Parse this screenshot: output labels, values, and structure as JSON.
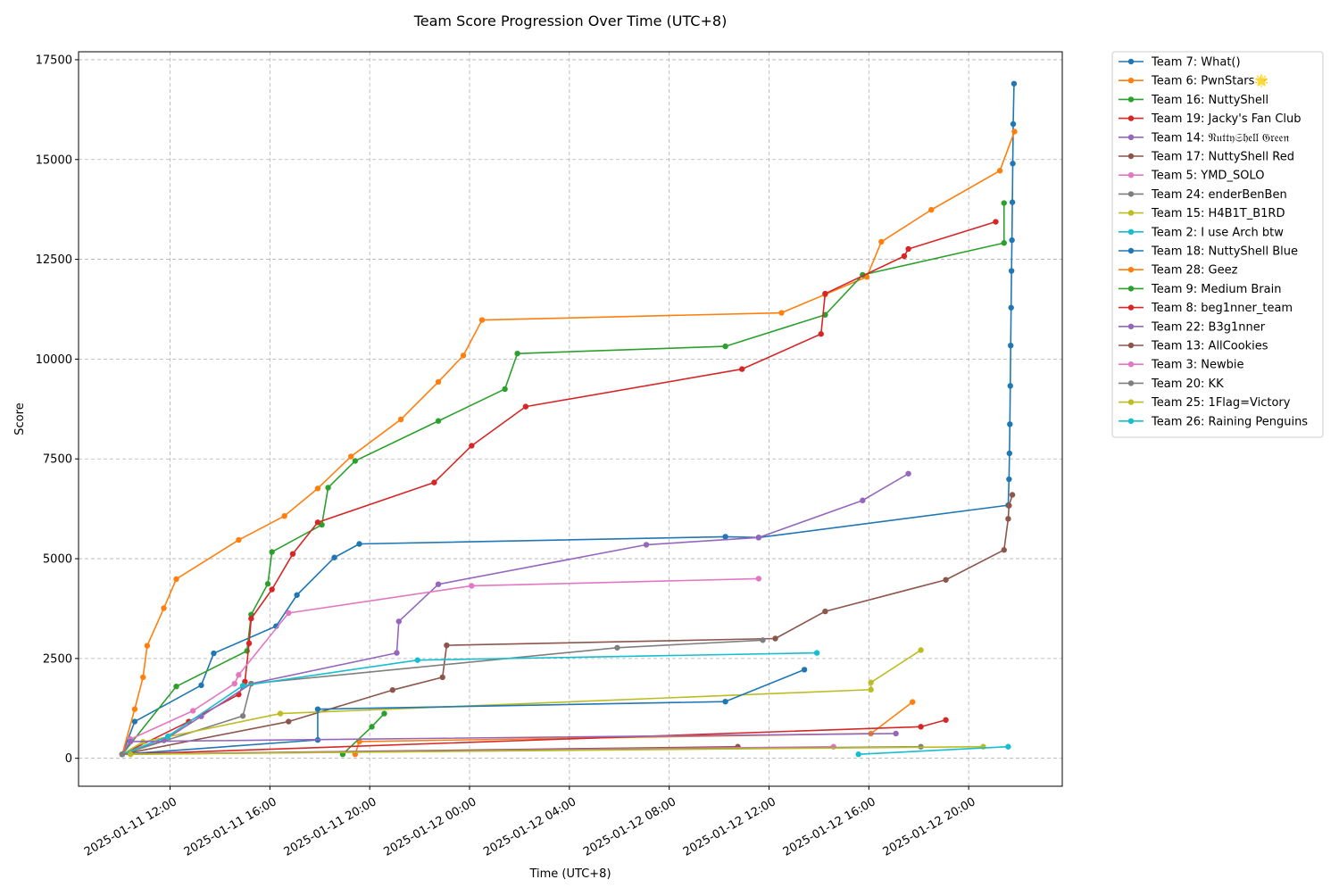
{
  "chart_data": {
    "type": "line",
    "title": "Team Score Progression Over Time (UTC+8)",
    "xlabel": "Time (UTC+8)",
    "ylabel": "Score",
    "xlim": [
      "2025-01-11 08:20",
      "2025-01-12 23:45"
    ],
    "ylim": [
      -700,
      17700
    ],
    "y_ticks": [
      0,
      2500,
      5000,
      7500,
      10000,
      12500,
      15000,
      17500
    ],
    "x_ticks": [
      "2025-01-11 12:00",
      "2025-01-11 16:00",
      "2025-01-11 20:00",
      "2025-01-12 00:00",
      "2025-01-12 04:00",
      "2025-01-12 08:00",
      "2025-01-12 12:00",
      "2025-01-12 16:00",
      "2025-01-12 20:00"
    ],
    "x_tick_labels": [
      "2025-01-11 12:00",
      "2025-01-11 16:00",
      "2025-01-11 20:00",
      "2025-01-12 00:00",
      "2025-01-12 04:00",
      "2025-01-12 08:00",
      "2025-01-12 12:00",
      "2025-01-12 16:00",
      "2025-01-12 20:00"
    ],
    "grid": true,
    "legend_position": "outside-right",
    "series": [
      {
        "name": "Team 7: What()",
        "color": "#1f77b4",
        "points": [
          [
            "2025-01-11 10:05",
            100
          ],
          [
            "2025-01-11 10:35",
            920
          ],
          [
            "2025-01-11 13:15",
            1830
          ],
          [
            "2025-01-11 13:45",
            2630
          ],
          [
            "2025-01-11 16:15",
            3310
          ],
          [
            "2025-01-11 17:05",
            4090
          ],
          [
            "2025-01-11 18:35",
            5030
          ],
          [
            "2025-01-11 19:35",
            5370
          ],
          [
            "2025-01-12 10:15",
            5550
          ],
          [
            "2025-01-12 11:35",
            5530
          ],
          [
            "2025-01-12 21:35",
            6340
          ],
          [
            "2025-01-12 21:37",
            6990
          ],
          [
            "2025-01-12 21:38",
            7640
          ],
          [
            "2025-01-12 21:39",
            8370
          ],
          [
            "2025-01-12 21:40",
            9330
          ],
          [
            "2025-01-12 21:41",
            10340
          ],
          [
            "2025-01-12 21:42",
            11290
          ],
          [
            "2025-01-12 21:43",
            12210
          ],
          [
            "2025-01-12 21:44",
            12980
          ],
          [
            "2025-01-12 21:45",
            13930
          ],
          [
            "2025-01-12 21:46",
            14900
          ],
          [
            "2025-01-12 21:47",
            15890
          ],
          [
            "2025-01-12 21:49",
            16900
          ]
        ]
      },
      {
        "name": "Team 6: PwnStars🌟",
        "color": "#ff7f0e",
        "points": [
          [
            "2025-01-11 10:05",
            100
          ],
          [
            "2025-01-11 10:35",
            1230
          ],
          [
            "2025-01-11 10:55",
            2030
          ],
          [
            "2025-01-11 11:05",
            2820
          ],
          [
            "2025-01-11 11:45",
            3760
          ],
          [
            "2025-01-11 12:15",
            4490
          ],
          [
            "2025-01-11 14:45",
            5470
          ],
          [
            "2025-01-11 16:35",
            6070
          ],
          [
            "2025-01-11 17:55",
            6760
          ],
          [
            "2025-01-11 19:15",
            7560
          ],
          [
            "2025-01-11 21:15",
            8490
          ],
          [
            "2025-01-11 22:45",
            9430
          ],
          [
            "2025-01-11 23:45",
            10090
          ],
          [
            "2025-01-12 00:30",
            10980
          ],
          [
            "2025-01-12 12:30",
            11160
          ],
          [
            "2025-01-12 14:15",
            11620
          ],
          [
            "2025-01-12 15:55",
            12060
          ],
          [
            "2025-01-12 16:30",
            12940
          ],
          [
            "2025-01-12 18:30",
            13740
          ],
          [
            "2025-01-12 21:15",
            14720
          ],
          [
            "2025-01-12 21:50",
            15700
          ]
        ]
      },
      {
        "name": "Team 16: NuttyShell",
        "color": "#2ca02c",
        "points": [
          [
            "2025-01-11 10:05",
            100
          ],
          [
            "2025-01-11 12:15",
            1800
          ],
          [
            "2025-01-11 15:05",
            2690
          ],
          [
            "2025-01-11 15:15",
            3600
          ],
          [
            "2025-01-11 15:55",
            4370
          ],
          [
            "2025-01-11 16:05",
            5170
          ],
          [
            "2025-01-11 18:05",
            5850
          ],
          [
            "2025-01-11 18:20",
            6780
          ],
          [
            "2025-01-11 19:25",
            7450
          ],
          [
            "2025-01-11 22:45",
            8450
          ],
          [
            "2025-01-12 01:25",
            9250
          ],
          [
            "2025-01-12 01:55",
            10140
          ],
          [
            "2025-01-12 10:15",
            10320
          ],
          [
            "2025-01-12 14:15",
            11110
          ],
          [
            "2025-01-12 15:45",
            12110
          ],
          [
            "2025-01-12 21:25",
            12910
          ],
          [
            "2025-01-12 21:25",
            13910
          ]
        ]
      },
      {
        "name": "Team 19: Jacky's Fan Club",
        "color": "#d62728",
        "points": [
          [
            "2025-01-11 10:05",
            100
          ],
          [
            "2025-01-11 12:45",
            920
          ],
          [
            "2025-01-11 14:45",
            1600
          ],
          [
            "2025-01-11 15:00",
            1920
          ],
          [
            "2025-01-11 15:10",
            2880
          ],
          [
            "2025-01-11 15:15",
            3500
          ],
          [
            "2025-01-11 16:05",
            4230
          ],
          [
            "2025-01-11 16:55",
            5120
          ],
          [
            "2025-01-11 17:55",
            5910
          ],
          [
            "2025-01-11 22:35",
            6910
          ],
          [
            "2025-01-12 00:05",
            7830
          ],
          [
            "2025-01-12 02:15",
            8810
          ],
          [
            "2025-01-12 10:55",
            9750
          ],
          [
            "2025-01-12 14:05",
            10630
          ],
          [
            "2025-01-12 14:15",
            11640
          ],
          [
            "2025-01-12 17:25",
            12580
          ],
          [
            "2025-01-12 17:35",
            12760
          ],
          [
            "2025-01-12 21:05",
            13440
          ]
        ]
      },
      {
        "name": "Team 14: 𝔑𝔲𝔱𝔱𝔶𝔖𝔥𝔢𝔩𝔩 𝔊𝔯𝔢𝔢𝔫",
        "color": "#9467bd",
        "points": [
          [
            "2025-01-11 10:05",
            100
          ],
          [
            "2025-01-11 11:45",
            450
          ],
          [
            "2025-01-11 13:15",
            1050
          ],
          [
            "2025-01-11 15:15",
            1870
          ],
          [
            "2025-01-11 21:05",
            2640
          ],
          [
            "2025-01-11 21:10",
            3430
          ],
          [
            "2025-01-11 22:45",
            4360
          ],
          [
            "2025-01-12 07:05",
            5350
          ],
          [
            "2025-01-12 11:35",
            5530
          ],
          [
            "2025-01-12 15:45",
            6460
          ],
          [
            "2025-01-12 17:35",
            7130
          ]
        ]
      },
      {
        "name": "Team 17: NuttyShell Red",
        "color": "#8c564b",
        "points": [
          [
            "2025-01-11 10:05",
            100
          ],
          [
            "2025-01-11 16:45",
            920
          ],
          [
            "2025-01-11 20:55",
            1710
          ],
          [
            "2025-01-11 22:55",
            2030
          ],
          [
            "2025-01-11 23:05",
            2830
          ],
          [
            "2025-01-12 12:15",
            3000
          ],
          [
            "2025-01-12 14:15",
            3680
          ],
          [
            "2025-01-12 19:05",
            4470
          ],
          [
            "2025-01-12 21:25",
            5220
          ],
          [
            "2025-01-12 21:35",
            6000
          ],
          [
            "2025-01-12 21:37",
            6330
          ],
          [
            "2025-01-12 21:45",
            6600
          ]
        ]
      },
      {
        "name": "Team 5: YMD_SOLO",
        "color": "#e377c2",
        "points": [
          [
            "2025-01-11 10:05",
            100
          ],
          [
            "2025-01-11 10:25",
            480
          ],
          [
            "2025-01-11 12:55",
            1190
          ],
          [
            "2025-01-11 14:35",
            1870
          ],
          [
            "2025-01-11 14:45",
            2090
          ],
          [
            "2025-01-11 16:45",
            3640
          ],
          [
            "2025-01-12 00:05",
            4320
          ],
          [
            "2025-01-12 11:35",
            4500
          ]
        ]
      },
      {
        "name": "Team 24: enderBenBen",
        "color": "#7f7f7f",
        "points": [
          [
            "2025-01-11 10:05",
            100
          ],
          [
            "2025-01-11 14:55",
            1060
          ],
          [
            "2025-01-11 15:15",
            1870
          ],
          [
            "2025-01-12 05:55",
            2770
          ],
          [
            "2025-01-12 11:45",
            2960
          ]
        ]
      },
      {
        "name": "Team 15: H4B1T_B1RD",
        "color": "#bcbd22",
        "points": [
          [
            "2025-01-11 10:05",
            100
          ],
          [
            "2025-01-11 10:55",
            410
          ],
          [
            "2025-01-11 16:25",
            1120
          ],
          [
            "2025-01-12 16:05",
            1720
          ],
          [
            "2025-01-12 16:05",
            1900
          ],
          [
            "2025-01-12 18:05",
            2710
          ]
        ]
      },
      {
        "name": "Team 2: I use Arch btw",
        "color": "#17becf",
        "points": [
          [
            "2025-01-11 10:05",
            100
          ],
          [
            "2025-01-11 11:55",
            550
          ],
          [
            "2025-01-11 14:55",
            1820
          ],
          [
            "2025-01-11 21:55",
            2460
          ],
          [
            "2025-01-12 13:55",
            2640
          ]
        ]
      },
      {
        "name": "Team 18: NuttyShell Blue",
        "color": "#1f77b4",
        "points": [
          [
            "2025-01-11 10:05",
            100
          ],
          [
            "2025-01-11 17:55",
            460
          ],
          [
            "2025-01-11 17:55",
            1230
          ],
          [
            "2025-01-12 10:15",
            1420
          ],
          [
            "2025-01-12 13:25",
            2220
          ]
        ]
      },
      {
        "name": "Team 28: Geez",
        "color": "#ff7f0e",
        "points": [
          [
            "2025-01-11 19:25",
            100
          ],
          [
            "2025-01-11 19:35",
            420
          ],
          [
            "2025-01-12 16:05",
            620
          ],
          [
            "2025-01-12 17:45",
            1410
          ]
        ]
      },
      {
        "name": "Team 9: Medium Brain",
        "color": "#2ca02c",
        "points": [
          [
            "2025-01-11 18:55",
            100
          ],
          [
            "2025-01-11 20:05",
            790
          ],
          [
            "2025-01-11 20:35",
            1120
          ]
        ]
      },
      {
        "name": "Team 8: beg1nner_team",
        "color": "#d62728",
        "points": [
          [
            "2025-01-11 10:05",
            100
          ],
          [
            "2025-01-12 18:05",
            790
          ],
          [
            "2025-01-12 19:05",
            960
          ]
        ]
      },
      {
        "name": "Team 22: B3g1nner",
        "color": "#9467bd",
        "points": [
          [
            "2025-01-11 10:05",
            100
          ],
          [
            "2025-01-11 10:25",
            420
          ],
          [
            "2025-01-12 17:05",
            620
          ]
        ]
      },
      {
        "name": "Team 13: AllCookies",
        "color": "#8c564b",
        "points": [
          [
            "2025-01-11 10:05",
            100
          ],
          [
            "2025-01-12 10:45",
            290
          ]
        ]
      },
      {
        "name": "Team 3: Newbie",
        "color": "#e377c2",
        "points": [
          [
            "2025-01-11 10:05",
            100
          ],
          [
            "2025-01-12 14:35",
            290
          ]
        ]
      },
      {
        "name": "Team 20: KK",
        "color": "#7f7f7f",
        "points": [
          [
            "2025-01-11 10:05",
            100
          ],
          [
            "2025-01-12 18:05",
            290
          ]
        ]
      },
      {
        "name": "Team 25: 1Flag=Victory",
        "color": "#bcbd22",
        "points": [
          [
            "2025-01-11 10:25",
            100
          ],
          [
            "2025-01-12 20:35",
            290
          ]
        ]
      },
      {
        "name": "Team 26: Raining Penguins",
        "color": "#17becf",
        "points": [
          [
            "2025-01-12 15:35",
            100
          ],
          [
            "2025-01-12 21:35",
            290
          ]
        ]
      }
    ]
  }
}
